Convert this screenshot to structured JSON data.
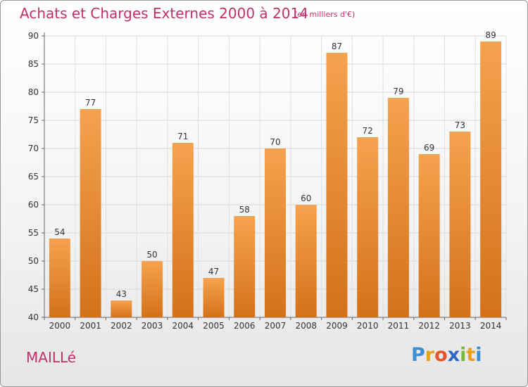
{
  "header": {
    "title": "Achats et Charges Externes 2000 à 2014",
    "subtitle": "(en milliers d'€)"
  },
  "footer": {
    "commune": "MAILLé",
    "logo_letters": [
      "P",
      "r",
      "o",
      "x",
      "i",
      "t",
      "i"
    ],
    "logo_colors": [
      "#3a8fd6",
      "#e8a21a",
      "#e8542a",
      "#2d66c7",
      "#7ab73a",
      "#e8a21a",
      "#3a8fd6"
    ]
  },
  "chart_data": {
    "type": "bar",
    "categories": [
      "2000",
      "2001",
      "2002",
      "2003",
      "2004",
      "2005",
      "2006",
      "2007",
      "2008",
      "2009",
      "2010",
      "2011",
      "2012",
      "2013",
      "2014"
    ],
    "values": [
      54,
      77,
      43,
      50,
      71,
      47,
      58,
      70,
      60,
      87,
      72,
      79,
      69,
      73,
      89
    ],
    "title": "Achats et Charges Externes 2000 à 2014",
    "ylim": [
      40,
      90
    ],
    "yticks": [
      40,
      45,
      50,
      55,
      60,
      65,
      70,
      75,
      80,
      85,
      90
    ],
    "grid": true,
    "bar_color_top": "#f5a24e",
    "bar_color_bottom": "#d4711a",
    "text_color": "#333333"
  }
}
